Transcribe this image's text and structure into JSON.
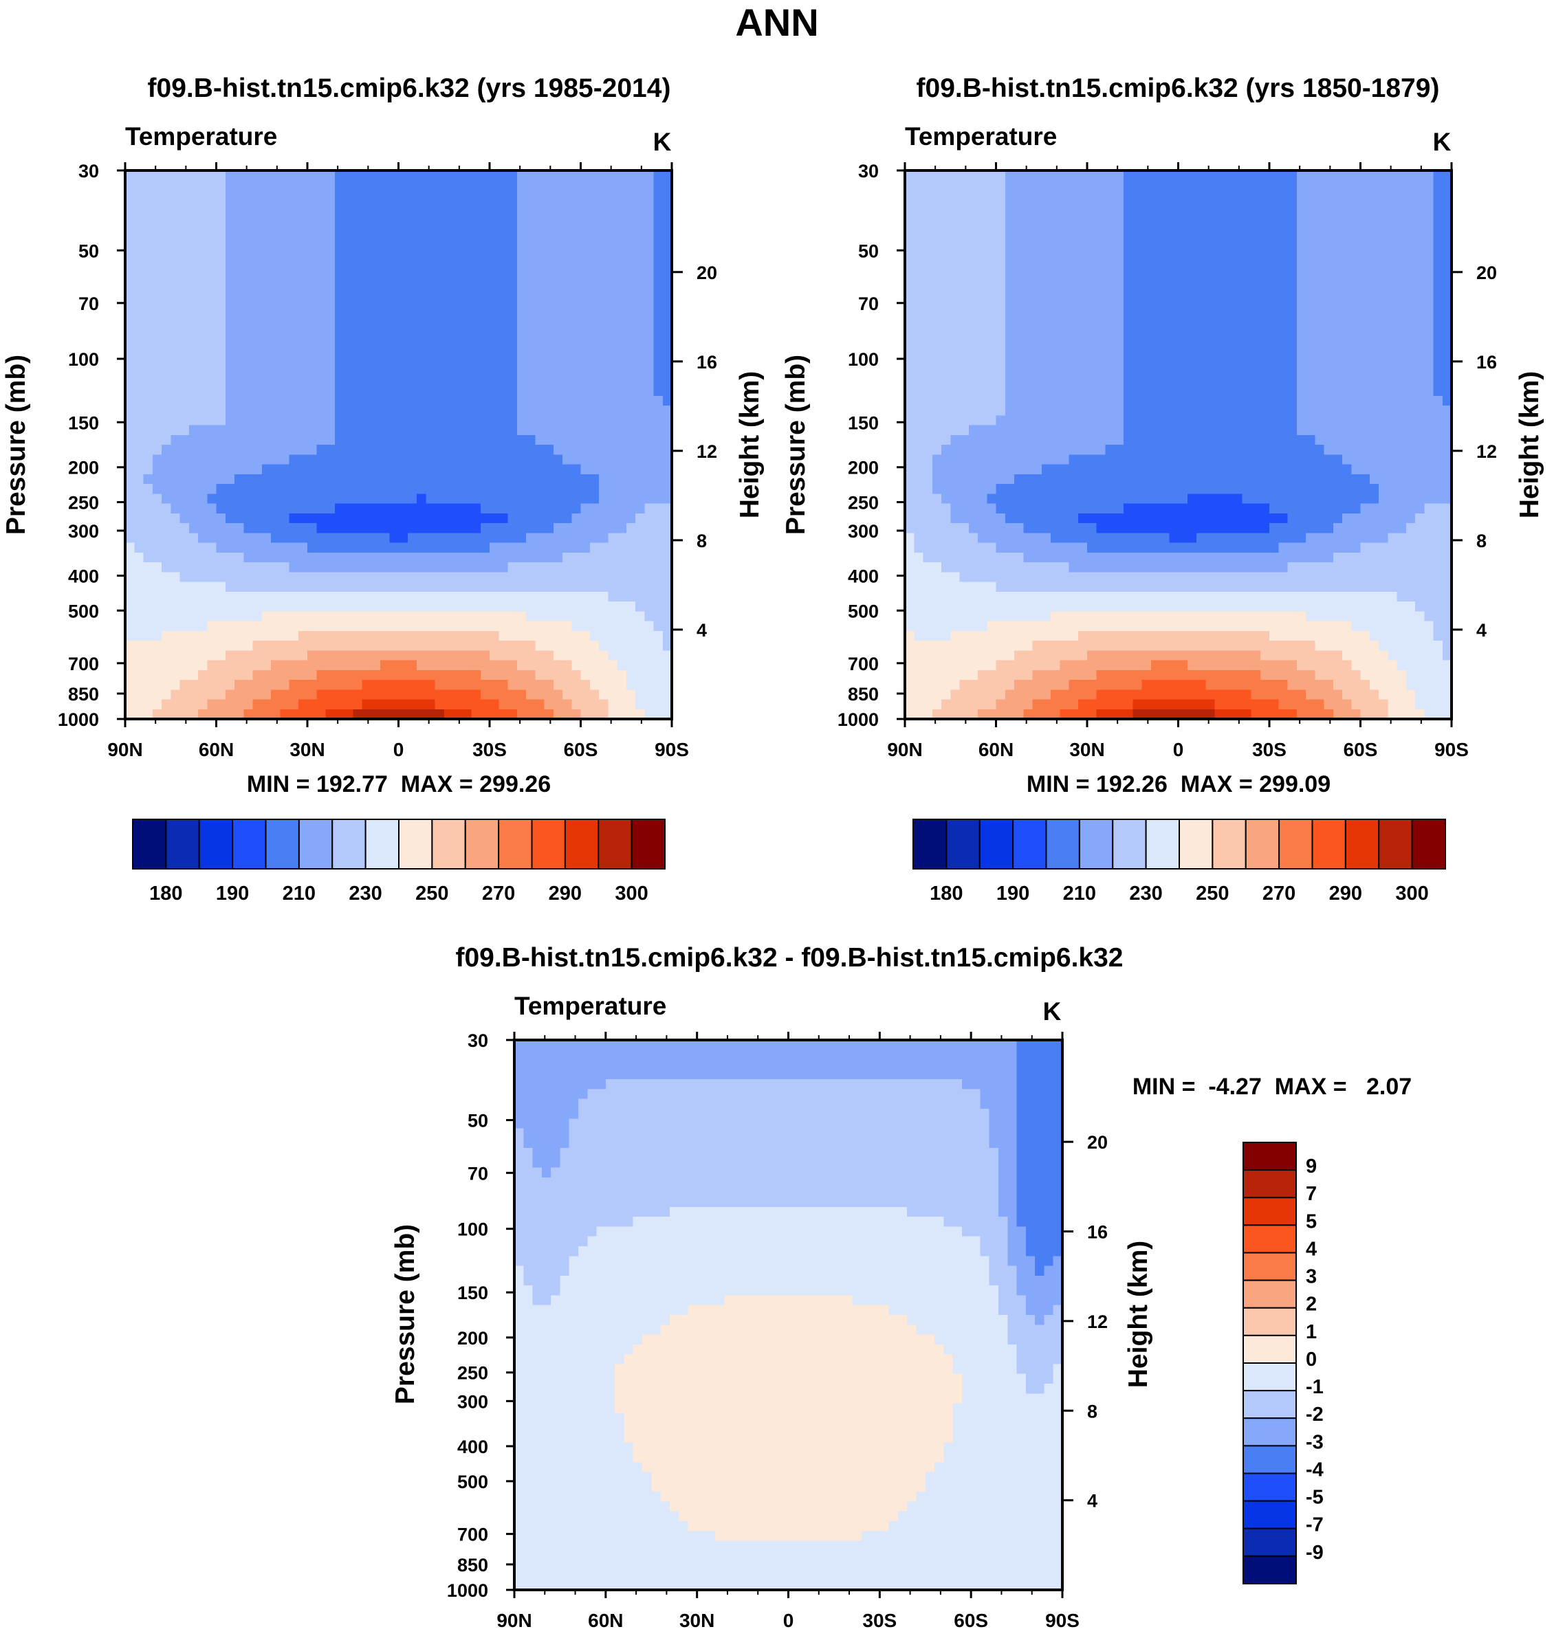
{
  "figure": {
    "title": "ANN",
    "palette": [
      "#000e7c",
      "#0a2bb4",
      "#0535e6",
      "#1e4ffa",
      "#4a7ef5",
      "#86a8fa",
      "#b3c9fb",
      "#dbe8fb",
      "#fde9da",
      "#fbc8ae",
      "#f9a680",
      "#fb7b48",
      "#fb5520",
      "#e63607",
      "#b82408",
      "#840000"
    ]
  },
  "chart_data": [
    {
      "type": "contour",
      "title": "f09.B-hist.tn15.cmip6.k32 (yrs 1985-2014)",
      "field": "Temperature",
      "units": "K",
      "xlabel": "",
      "ylabel": "Pressure (mb)",
      "y2label": "Height (km)",
      "x_ticks": [
        "90N",
        "60N",
        "30N",
        "0",
        "30S",
        "60S",
        "90S"
      ],
      "y_ticks": [
        30,
        50,
        70,
        100,
        150,
        200,
        250,
        300,
        400,
        500,
        700,
        850,
        1000
      ],
      "y2_ticks": [
        20,
        16,
        12,
        8,
        4
      ],
      "ylim": [
        30,
        1000
      ],
      "min": 192.77,
      "max": 299.26,
      "stats_text": "MIN = 192.77  MAX = 299.26",
      "levels": [
        180,
        185,
        190,
        200,
        210,
        220,
        230,
        240,
        250,
        260,
        270,
        280,
        290,
        295,
        300
      ],
      "colorbar_labels": [
        "180",
        "190",
        "210",
        "230",
        "250",
        "270",
        "290",
        "300"
      ]
    },
    {
      "type": "contour",
      "title": "f09.B-hist.tn15.cmip6.k32 (yrs 1850-1879)",
      "field": "Temperature",
      "units": "K",
      "xlabel": "",
      "ylabel": "Pressure (mb)",
      "y2label": "Height (km)",
      "x_ticks": [
        "90N",
        "60N",
        "30N",
        "0",
        "30S",
        "60S",
        "90S"
      ],
      "y_ticks": [
        30,
        50,
        70,
        100,
        150,
        200,
        250,
        300,
        400,
        500,
        700,
        850,
        1000
      ],
      "y2_ticks": [
        20,
        16,
        12,
        8,
        4
      ],
      "ylim": [
        30,
        1000
      ],
      "min": 192.26,
      "max": 299.09,
      "stats_text": "MIN = 192.26  MAX = 299.09",
      "levels": [
        180,
        185,
        190,
        200,
        210,
        220,
        230,
        240,
        250,
        260,
        270,
        280,
        290,
        295,
        300
      ],
      "colorbar_labels": [
        "180",
        "190",
        "210",
        "230",
        "250",
        "270",
        "290",
        "300"
      ]
    },
    {
      "type": "contour",
      "title": "f09.B-hist.tn15.cmip6.k32 - f09.B-hist.tn15.cmip6.k32",
      "field": "Temperature",
      "units": "K",
      "xlabel": "",
      "ylabel": "Pressure (mb)",
      "y2label": "Height (km)",
      "x_ticks": [
        "90N",
        "60N",
        "30N",
        "0",
        "30S",
        "60S",
        "90S"
      ],
      "y_ticks": [
        30,
        50,
        70,
        100,
        150,
        200,
        250,
        300,
        400,
        500,
        700,
        850,
        1000
      ],
      "y2_ticks": [
        20,
        16,
        12,
        8,
        4
      ],
      "ylim": [
        30,
        1000
      ],
      "min": -4.27,
      "max": 2.07,
      "stats_text": "MIN =  -4.27  MAX =   2.07",
      "levels": [
        -9,
        -7,
        -5,
        -4,
        -3,
        -2,
        -1,
        0,
        1,
        2,
        3,
        4,
        5,
        7,
        9
      ],
      "colorbar_labels": [
        "9",
        "7",
        "5",
        "4",
        "3",
        "2",
        "1",
        "0",
        "-1",
        "-2",
        "-3",
        "-4",
        "-5",
        "-7",
        "-9"
      ]
    }
  ]
}
